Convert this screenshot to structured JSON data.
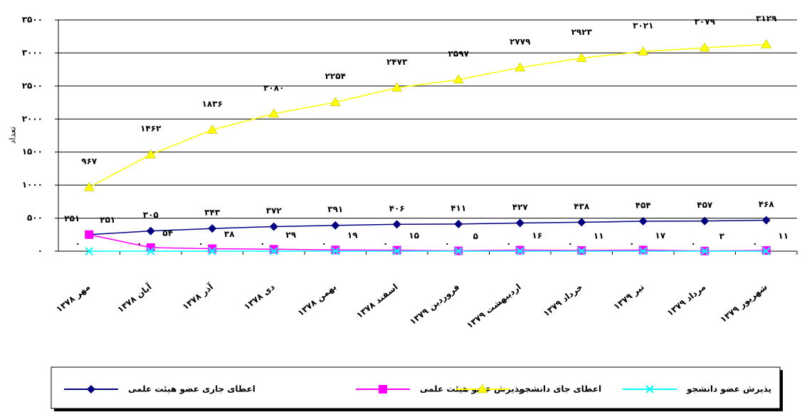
{
  "chart_data": {
    "type": "line",
    "y_label": "تعداد",
    "categories": [
      "مهر ۱۳۷۸",
      "آبان ۱۳۷۸",
      "آذر ۱۳۷۸",
      "دی ۱۳۷۸",
      "بهمن ۱۳۷۸",
      "اسفند ۱۳۷۸",
      "فروردین ۱۳۷۹",
      "اردیبهشت ۱۳۷۹",
      "خرداد ۱۳۷۹",
      "تیر ۱۳۷۹",
      "مرداد ۱۳۷۹",
      "شهریور ۱۳۷۹"
    ],
    "series": [
      {
        "name": "اعطای جاری عضو هیئت علمی",
        "color": "#000080",
        "marker": "diamond",
        "values": [
          251,
          305,
          343,
          372,
          391,
          406,
          411,
          427,
          438,
          454,
          457,
          468
        ],
        "value_labels": [
          "۲۵۱",
          "۳۰۵",
          "۳۴۳",
          "۳۷۲",
          "۳۹۱",
          "۴۰۶",
          "۴۱۱",
          "۴۲۷",
          "۴۳۸",
          "۴۵۴",
          "۴۵۷",
          "۴۶۸"
        ]
      },
      {
        "name": "پذیرش عضو هیئت علمی",
        "color": "#ff00ff",
        "marker": "square",
        "values": [
          251,
          54,
          38,
          29,
          19,
          15,
          5,
          16,
          11,
          17,
          3,
          11
        ],
        "value_labels": [
          "۲۵۱",
          "۵۴",
          "۳۸",
          "۲۹",
          "۱۹",
          "۱۵",
          "۵",
          "۱۶",
          "۱۱",
          "۱۷",
          "۳",
          "۱۱"
        ]
      },
      {
        "name": "اعطای جای دانشجو",
        "color": "#ffff00",
        "marker": "triangle",
        "values": [
          967,
          1462,
          1836,
          2080,
          2254,
          2473,
          2597,
          2779,
          2923,
          3021,
          3079,
          3129
        ],
        "value_labels": [
          "۹۶۷",
          "۱۴۶۲",
          "۱۸۳۶",
          "۲۰۸۰",
          "۲۲۵۴",
          "۲۴۷۳",
          "۲۵۹۷",
          "۲۷۷۹",
          "۲۹۲۳",
          "۳۰۲۱",
          "۳۰۷۹",
          "۳۱۲۹"
        ]
      },
      {
        "name": "پذیرش عضو دانشجو",
        "color": "#00ffff",
        "marker": "x",
        "values": [
          0,
          0,
          0,
          0,
          0,
          0,
          0,
          0,
          0,
          0,
          0,
          0
        ],
        "value_labels": [
          "۰",
          "۰",
          "۰",
          "۰",
          "۰",
          "۰",
          "۰",
          "۰",
          "۰",
          "۰",
          "۰",
          "۰"
        ]
      }
    ],
    "ylim": [
      0,
      3500
    ],
    "yticks": [
      {
        "value": 0,
        "label": "۰"
      },
      {
        "value": 500,
        "label": "۵۰۰"
      },
      {
        "value": 1000,
        "label": "۱۰۰۰"
      },
      {
        "value": 1500,
        "label": "۱۵۰۰"
      },
      {
        "value": 2000,
        "label": "۲۰۰۰"
      },
      {
        "value": 2500,
        "label": "۲۵۰۰"
      },
      {
        "value": 3000,
        "label": "۳۰۰۰"
      },
      {
        "value": 3500,
        "label": "۳۵۰۰"
      }
    ],
    "grid": true,
    "legend": "bottom"
  }
}
